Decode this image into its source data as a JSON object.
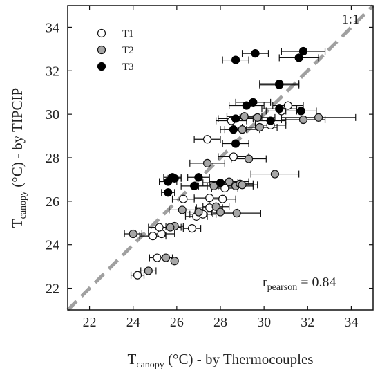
{
  "chart_data": {
    "type": "scatter",
    "xlabel": {
      "main": "T",
      "sub": "canopy",
      "rest": " (°C) - by Thermocouples"
    },
    "ylabel": {
      "main": "T",
      "sub": "canopy",
      "rest": " (°C) - by TIPCIP"
    },
    "xlim": [
      21,
      35
    ],
    "ylim": [
      21,
      35
    ],
    "xticks": [
      22,
      24,
      26,
      28,
      30,
      32,
      34
    ],
    "yticks": [
      22,
      24,
      26,
      28,
      30,
      32,
      34
    ],
    "reference_line": {
      "label": "1:1",
      "style": "dashed",
      "color": "#a0a0a0"
    },
    "annotation": {
      "main": "r",
      "sub": "pearson",
      "rest": " = 0.84"
    },
    "legend_position": "top-left",
    "series": [
      {
        "name": "T1",
        "fill": "#ffffff",
        "stroke": "#111111",
        "points": [
          {
            "x": 24.2,
            "y": 22.6,
            "xerr": 0.3
          },
          {
            "x": 25.1,
            "y": 23.4,
            "xerr": 0.35
          },
          {
            "x": 24.9,
            "y": 24.4,
            "xerr": 0.6
          },
          {
            "x": 25.3,
            "y": 24.5,
            "xerr": 0.6
          },
          {
            "x": 25.2,
            "y": 24.8,
            "xerr": 0.5
          },
          {
            "x": 26.7,
            "y": 24.75,
            "xerr": 0.4
          },
          {
            "x": 26.9,
            "y": 25.3,
            "xerr": 0.5
          },
          {
            "x": 27.2,
            "y": 25.4,
            "xerr": 0.6
          },
          {
            "x": 27.5,
            "y": 25.7,
            "xerr": 0.6
          },
          {
            "x": 27.5,
            "y": 26.15,
            "xerr": 0.7
          },
          {
            "x": 28.1,
            "y": 26.1,
            "xerr": 0.6
          },
          {
            "x": 26.3,
            "y": 26.1,
            "xerr": 0.5
          },
          {
            "x": 28.2,
            "y": 26.6,
            "xerr": 0.6
          },
          {
            "x": 27.4,
            "y": 28.85,
            "xerr": 0.6
          },
          {
            "x": 28.6,
            "y": 28.05,
            "xerr": 0.7
          },
          {
            "x": 28.5,
            "y": 29.7,
            "xerr": 0.7
          },
          {
            "x": 30.3,
            "y": 29.5,
            "xerr": 0.7
          },
          {
            "x": 31.1,
            "y": 30.4,
            "xerr": 0.7
          },
          {
            "x": 30.8,
            "y": 30.15,
            "xerr": 0.7
          }
        ]
      },
      {
        "name": "T2",
        "fill": "#a6a6a6",
        "stroke": "#111111",
        "points": [
          {
            "x": 24.7,
            "y": 22.8,
            "xerr": 0.35
          },
          {
            "x": 25.9,
            "y": 23.25,
            "xerr": 0.15
          },
          {
            "x": 25.5,
            "y": 23.4,
            "xerr": 0.3
          },
          {
            "x": 24.0,
            "y": 24.5,
            "xerr": 0.4
          },
          {
            "x": 25.9,
            "y": 24.85,
            "xerr": 0.4
          },
          {
            "x": 25.7,
            "y": 24.8,
            "xerr": 0.5
          },
          {
            "x": 26.25,
            "y": 25.6,
            "xerr": 0.6
          },
          {
            "x": 27.0,
            "y": 25.5,
            "xerr": 0.6
          },
          {
            "x": 27.8,
            "y": 25.75,
            "xerr": 0.6
          },
          {
            "x": 28.0,
            "y": 25.5,
            "xerr": 0.8
          },
          {
            "x": 28.75,
            "y": 25.45,
            "xerr": 1.1
          },
          {
            "x": 27.7,
            "y": 26.7,
            "xerr": 0.7
          },
          {
            "x": 28.4,
            "y": 26.9,
            "xerr": 0.9
          },
          {
            "x": 28.7,
            "y": 26.7,
            "xerr": 0.8
          },
          {
            "x": 28.9,
            "y": 26.8,
            "xerr": 0.6
          },
          {
            "x": 29.0,
            "y": 26.75,
            "xerr": 0.7
          },
          {
            "x": 30.5,
            "y": 27.25,
            "xerr": 1.1
          },
          {
            "x": 27.4,
            "y": 27.75,
            "xerr": 0.8
          },
          {
            "x": 29.3,
            "y": 27.95,
            "xerr": 0.8
          },
          {
            "x": 29.0,
            "y": 29.3,
            "xerr": 0.8
          },
          {
            "x": 29.1,
            "y": 29.9,
            "xerr": 0.8
          },
          {
            "x": 29.7,
            "y": 29.85,
            "xerr": 0.8
          },
          {
            "x": 29.8,
            "y": 29.4,
            "xerr": 0.8
          },
          {
            "x": 31.8,
            "y": 29.75,
            "xerr": 1.0
          },
          {
            "x": 32.5,
            "y": 29.85,
            "xerr": 1.7
          }
        ]
      },
      {
        "name": "T3",
        "fill": "#000000",
        "stroke": "#000000",
        "points": [
          {
            "x": 25.6,
            "y": 26.4,
            "xerr": 0.3
          },
          {
            "x": 25.6,
            "y": 26.9,
            "xerr": 0.4
          },
          {
            "x": 25.8,
            "y": 27.1,
            "xerr": 0.4
          },
          {
            "x": 25.9,
            "y": 27.05,
            "xerr": 0.3
          },
          {
            "x": 26.8,
            "y": 26.7,
            "xerr": 0.6
          },
          {
            "x": 27.0,
            "y": 27.1,
            "xerr": 0.5
          },
          {
            "x": 28.0,
            "y": 26.85,
            "xerr": 0.8
          },
          {
            "x": 28.7,
            "y": 28.65,
            "xerr": 0.6
          },
          {
            "x": 28.6,
            "y": 29.3,
            "xerr": 0.6
          },
          {
            "x": 28.7,
            "y": 29.8,
            "xerr": 0.8
          },
          {
            "x": 29.2,
            "y": 30.4,
            "xerr": 0.8
          },
          {
            "x": 29.5,
            "y": 30.55,
            "xerr": 0.8
          },
          {
            "x": 30.7,
            "y": 30.25,
            "xerr": 0.8
          },
          {
            "x": 30.3,
            "y": 29.7,
            "xerr": 0.7
          },
          {
            "x": 31.7,
            "y": 30.15,
            "xerr": 0.7
          },
          {
            "x": 30.7,
            "y": 31.35,
            "xerr": 0.9
          },
          {
            "x": 30.7,
            "y": 31.4,
            "xerr": 0.9
          },
          {
            "x": 28.7,
            "y": 32.5,
            "xerr": 0.6
          },
          {
            "x": 29.6,
            "y": 32.8,
            "xerr": 0.6
          },
          {
            "x": 31.6,
            "y": 32.6,
            "xerr": 0.9
          },
          {
            "x": 31.8,
            "y": 32.9,
            "xerr": 1.0
          }
        ]
      }
    ]
  }
}
